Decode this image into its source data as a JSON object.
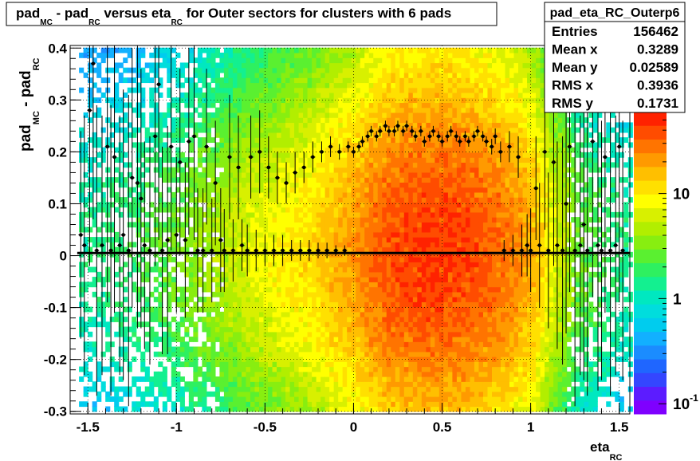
{
  "title": {
    "parts": [
      {
        "text": "pad",
        "sub": false
      },
      {
        "text": "MC",
        "sub": true
      },
      {
        "text": " - pad",
        "sub": false
      },
      {
        "text": "RC",
        "sub": true
      },
      {
        "text": " versus eta",
        "sub": false
      },
      {
        "text": "RC",
        "sub": true
      },
      {
        "text": " for Outer sectors for clusters with 6 pads",
        "sub": false
      }
    ]
  },
  "stats": {
    "name": "pad_eta_RC_Outerp6",
    "rows": [
      {
        "label": "Entries",
        "value": "156462"
      },
      {
        "label": "Mean x",
        "value": "0.3289"
      },
      {
        "label": "Mean y",
        "value": "0.02589"
      },
      {
        "label": "RMS x",
        "value": "0.3936"
      },
      {
        "label": "RMS y",
        "value": "0.1731"
      }
    ]
  },
  "chart_data": {
    "type": "heatmap",
    "xlabel": {
      "main": "eta",
      "sub": "RC"
    },
    "ylabel": {
      "parts": [
        {
          "text": "pad",
          "sub": false
        },
        {
          "text": "MC",
          "sub": true
        },
        {
          "text": " - pad",
          "sub": false
        },
        {
          "text": "RC",
          "sub": true
        }
      ]
    },
    "xlim": [
      -1.6,
      1.56
    ],
    "ylim": [
      -0.305,
      0.405
    ],
    "x_ticks": [
      {
        "v": -1.5,
        "t": "-1.5"
      },
      {
        "v": -1,
        "t": "-1"
      },
      {
        "v": -0.5,
        "t": "-0.5"
      },
      {
        "v": 0,
        "t": "0"
      },
      {
        "v": 0.5,
        "t": "0.5"
      },
      {
        "v": 1,
        "t": "1"
      },
      {
        "v": 1.5,
        "t": "1.5"
      }
    ],
    "y_ticks": [
      {
        "v": 0.4,
        "t": "0.4"
      },
      {
        "v": 0.3,
        "t": "0.3"
      },
      {
        "v": 0.2,
        "t": "0.2"
      },
      {
        "v": 0.1,
        "t": "0.1"
      },
      {
        "v": 0,
        "t": "0"
      },
      {
        "v": -0.1,
        "t": "-0.1"
      },
      {
        "v": -0.2,
        "t": "-0.2"
      },
      {
        "v": -0.3,
        "t": "-0.3"
      }
    ],
    "grid": true,
    "z_scale": "log",
    "z_range": [
      0.08,
      60
    ],
    "z_ticks": [
      {
        "v": 0.1,
        "t": "10",
        "exp": "-1"
      },
      {
        "v": 1,
        "t": "1",
        "exp": ""
      },
      {
        "v": 10,
        "t": "10",
        "exp": ""
      }
    ],
    "color_map": [
      "#7f00ff",
      "#5c1cff",
      "#3446ff",
      "#1f66ff",
      "#1b8cff",
      "#12b0ff",
      "#00ccee",
      "#00dddd",
      "#00e8c0",
      "#13f090",
      "#2ef060",
      "#5af030",
      "#88ee10",
      "#b2ee00",
      "#d8f000",
      "#ffff00",
      "#ffe000",
      "#ffbf00",
      "#ff9a00",
      "#ff7400",
      "#ff4c00",
      "#ff2200"
    ],
    "density": {
      "x_range": [
        -1.55,
        1.55
      ],
      "bin_width": 0.0248,
      "y_range": [
        -0.3,
        0.4
      ],
      "y_bin": 0.0096,
      "profile_x": [
        -1.5,
        -1.25,
        -1.0,
        -0.75,
        -0.5,
        -0.25,
        0.0,
        0.2,
        0.4,
        0.6,
        0.8,
        1.0,
        1.1,
        1.25,
        1.5
      ],
      "profile_level": [
        1.5,
        2.0,
        3.0,
        5.0,
        8.0,
        12.0,
        22.0,
        38.0,
        45.0,
        42.0,
        32.0,
        18.0,
        8.0,
        3.0,
        1.5
      ],
      "core_sigma": 0.18,
      "tail": 0.15
    },
    "series": [
      {
        "name": "",
        "x": [
          -1.54,
          -1.52,
          -1.49,
          -1.47,
          -1.45,
          -1.42,
          -1.39,
          -1.37,
          -1.35,
          -1.32,
          -1.3,
          -1.27,
          -1.25,
          -1.22,
          -1.2,
          -1.18,
          -1.15,
          -1.12,
          -1.1,
          -1.08,
          -1.05,
          -1.03,
          -1.0,
          -0.98,
          -0.95,
          -0.93,
          -0.9,
          -0.88,
          -0.85,
          -0.83,
          -0.8,
          -0.78,
          -0.75,
          -0.73,
          -0.7,
          -0.68,
          -0.65,
          -0.63,
          -0.6,
          -0.58,
          -0.55,
          -0.53,
          -0.5,
          -0.48,
          -0.45,
          -0.43,
          -0.4,
          -0.38,
          -0.35,
          -0.33,
          -0.3,
          -0.28,
          -0.25,
          -0.23,
          -0.2,
          -0.18,
          -0.15,
          -0.13,
          -0.1,
          -0.08,
          -0.05,
          -0.03,
          0.0,
          0.03,
          0.05,
          0.08,
          0.1,
          0.13,
          0.15,
          0.18,
          0.2,
          0.23,
          0.25,
          0.28,
          0.3,
          0.33,
          0.35,
          0.38,
          0.4,
          0.43,
          0.45,
          0.48,
          0.5,
          0.53,
          0.55,
          0.58,
          0.6,
          0.63,
          0.65,
          0.68,
          0.7,
          0.73,
          0.75,
          0.78,
          0.8,
          0.83,
          0.85,
          0.88,
          0.9,
          0.93,
          0.95,
          0.98,
          1.0,
          1.03,
          1.05,
          1.08,
          1.1,
          1.13,
          1.15,
          1.18,
          1.2,
          1.22,
          1.25,
          1.28,
          1.3,
          1.32,
          1.35,
          1.38,
          1.4,
          1.42,
          1.45,
          1.48,
          1.5,
          1.52
        ],
        "y": [
          0.04,
          0.02,
          0.28,
          0.37,
          0.01,
          0.02,
          0.21,
          0.01,
          0.19,
          0.02,
          0.04,
          0.01,
          0.15,
          0.14,
          0.11,
          0.02,
          0.01,
          0.23,
          0.33,
          0.01,
          0.03,
          0.21,
          0.04,
          0.18,
          0.03,
          0.22,
          0.23,
          0.01,
          0.01,
          0.21,
          0.01,
          0.14,
          0.03,
          0.01,
          0.19,
          0.01,
          0.17,
          0.02,
          0.01,
          0.19,
          0.01,
          0.2,
          0.01,
          0.17,
          0.01,
          0.15,
          0.01,
          0.14,
          0.01,
          0.16,
          0.01,
          0.17,
          0.01,
          0.19,
          0.01,
          0.2,
          0.01,
          0.21,
          0.01,
          0.2,
          0.01,
          0.21,
          0.2,
          0.21,
          0.22,
          0.23,
          0.24,
          0.23,
          0.24,
          0.25,
          0.24,
          0.24,
          0.25,
          0.24,
          0.25,
          0.24,
          0.23,
          0.24,
          0.22,
          0.23,
          0.24,
          0.23,
          0.22,
          0.23,
          0.24,
          0.23,
          0.22,
          0.23,
          0.22,
          0.23,
          0.24,
          0.23,
          0.22,
          0.21,
          0.23,
          0.2,
          0.01,
          0.21,
          0.01,
          0.19,
          0.01,
          0.02,
          0.01,
          0.13,
          0.02,
          0.2,
          0.01,
          0.18,
          0.02,
          0.01,
          0.1,
          0.21,
          0.01,
          0.02,
          0.06,
          0.01,
          0.22,
          0.02,
          0.01,
          0.19,
          0.01,
          0.02,
          0.21,
          0.01
        ],
        "err": [
          0.2,
          0.25,
          0.3,
          0.3,
          0.28,
          0.25,
          0.3,
          0.28,
          0.3,
          0.25,
          0.28,
          0.3,
          0.25,
          0.28,
          0.25,
          0.2,
          0.22,
          0.25,
          0.3,
          0.2,
          0.22,
          0.2,
          0.15,
          0.18,
          0.15,
          0.18,
          0.2,
          0.12,
          0.12,
          0.15,
          0.1,
          0.12,
          0.1,
          0.08,
          0.12,
          0.06,
          0.1,
          0.05,
          0.05,
          0.08,
          0.04,
          0.08,
          0.03,
          0.06,
          0.03,
          0.05,
          0.03,
          0.04,
          0.02,
          0.04,
          0.02,
          0.03,
          0.02,
          0.03,
          0.015,
          0.02,
          0.015,
          0.02,
          0.01,
          0.015,
          0.01,
          0.01,
          0.01,
          0.01,
          0.01,
          0.01,
          0.01,
          0.01,
          0.01,
          0.01,
          0.01,
          0.01,
          0.01,
          0.01,
          0.01,
          0.01,
          0.01,
          0.01,
          0.01,
          0.01,
          0.01,
          0.01,
          0.01,
          0.01,
          0.01,
          0.01,
          0.01,
          0.01,
          0.01,
          0.01,
          0.01,
          0.01,
          0.01,
          0.015,
          0.015,
          0.02,
          0.02,
          0.03,
          0.03,
          0.04,
          0.05,
          0.06,
          0.08,
          0.1,
          0.12,
          0.15,
          0.15,
          0.2,
          0.2,
          0.22,
          0.25,
          0.28,
          0.3,
          0.25,
          0.3,
          0.28,
          0.3,
          0.28,
          0.25,
          0.3,
          0.28,
          0.25,
          0.3,
          0.25
        ]
      }
    ],
    "fit_line": {
      "x": [
        -1.56,
        1.56
      ],
      "y": [
        0.005,
        0.005
      ]
    }
  }
}
